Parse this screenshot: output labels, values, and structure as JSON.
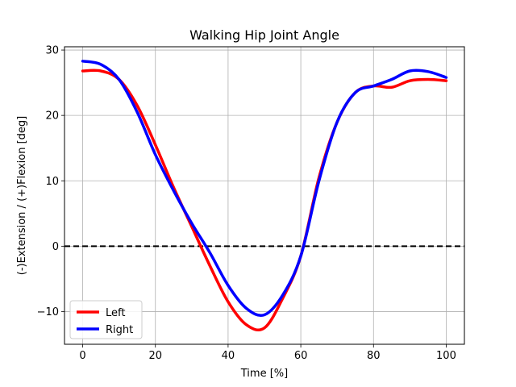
{
  "chart_data": {
    "type": "line",
    "title": "Walking Hip Joint Angle",
    "xlabel": "Time [%]",
    "ylabel": "(-)Extension / (+)Flexion [deg]",
    "xlim": [
      -5,
      105
    ],
    "ylim": [
      -15,
      30.5
    ],
    "xticks": [
      0,
      20,
      40,
      60,
      80,
      100
    ],
    "yticks": [
      -10,
      0,
      10,
      20,
      30
    ],
    "grid": true,
    "legend_position": "lower-left",
    "reference_line": {
      "y": 0,
      "style": "dashed",
      "color": "#000000"
    },
    "series": [
      {
        "name": "Left",
        "color": "#ff0000",
        "x": [
          0,
          5,
          10,
          15,
          20,
          25,
          30,
          35,
          40,
          45,
          50,
          55,
          60,
          65,
          70,
          75,
          80,
          85,
          90,
          95,
          100
        ],
        "y": [
          26.8,
          26.8,
          25.5,
          21.5,
          15.5,
          9.0,
          3.0,
          -3.0,
          -8.5,
          -12.0,
          -12.5,
          -8.0,
          -1.5,
          10.5,
          19.0,
          23.5,
          24.5,
          24.3,
          25.3,
          25.5,
          25.3
        ]
      },
      {
        "name": "Right",
        "color": "#0000ff",
        "x": [
          0,
          5,
          10,
          15,
          20,
          25,
          30,
          35,
          40,
          45,
          50,
          55,
          60,
          65,
          70,
          75,
          80,
          85,
          90,
          95,
          100
        ],
        "y": [
          28.3,
          27.8,
          25.5,
          20.5,
          14.0,
          8.5,
          3.5,
          -1.0,
          -6.0,
          -9.5,
          -10.5,
          -7.5,
          -1.5,
          10.0,
          19.0,
          23.5,
          24.5,
          25.5,
          26.8,
          26.7,
          25.8
        ]
      }
    ]
  }
}
